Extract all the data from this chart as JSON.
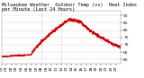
{
  "title": "Milwaukee Weather  Outdoor Temp (vs)  Heat Index per Minute (Last 24 Hours)",
  "bg_color": "#ffffff",
  "plot_bg_color": "#ffffff",
  "line_color": "#dd0000",
  "grid_color": "#cccccc",
  "text_color": "#000000",
  "ylim": [
    57,
    93
  ],
  "yticks": [
    60,
    65,
    70,
    75,
    80,
    85,
    90
  ],
  "num_points": 1440,
  "vline_x": [
    480,
    720
  ],
  "title_fontsize": 3.8,
  "tick_fontsize": 3.2,
  "linewidth": 0.5
}
